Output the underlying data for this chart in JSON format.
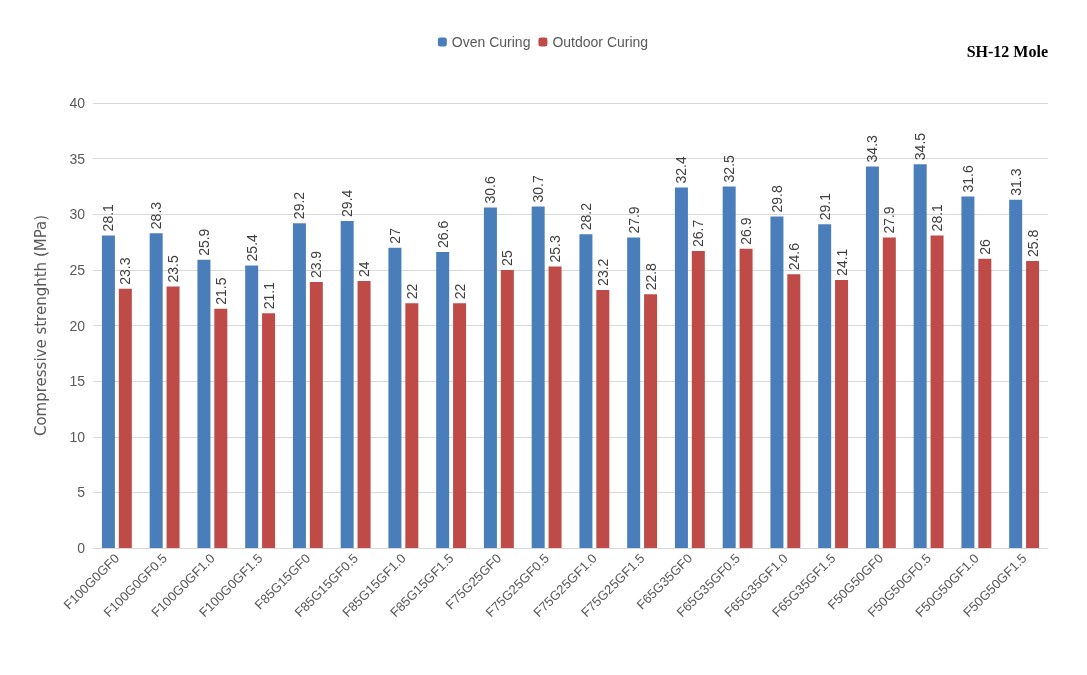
{
  "chart_data": {
    "type": "bar",
    "title": "SH-12 Mole",
    "ylabel": "Compressive strenghth (MPa)",
    "categories": [
      "F100G0GF0",
      "F100G0GF0.5",
      "F100G0GF1.0",
      "F100G0GF1.5",
      "F85G15GF0",
      "F85G15GF0.5",
      "F85G15GF1.0",
      "F85G15GF1.5",
      "F75G25GF0",
      "F75G25GF0.5",
      "F75G25GF1.0",
      "F75G25GF1.5",
      "F65G35GF0",
      "F65G35GF0.5",
      "F65G35GF1.0",
      "F65G35GF1.5",
      "F50G50GF0",
      "F50G50GF0.5",
      "F50G50GF1.0",
      "F50G50GF1.5"
    ],
    "series": [
      {
        "name": "Oven Curing",
        "color": "#4a7ebb",
        "values": [
          28.1,
          28.3,
          25.9,
          25.4,
          29.2,
          29.4,
          27,
          26.6,
          30.6,
          30.7,
          28.2,
          27.9,
          32.4,
          32.5,
          29.8,
          29.1,
          34.3,
          34.5,
          31.6,
          31.3
        ]
      },
      {
        "name": "Outdoor Curing",
        "color": "#be4b48",
        "values": [
          23.3,
          23.5,
          21.5,
          21.1,
          23.9,
          24,
          22,
          22,
          25,
          25.3,
          23.2,
          22.8,
          26.7,
          26.9,
          24.6,
          24.1,
          27.9,
          28.1,
          26,
          25.8
        ]
      }
    ],
    "ylim": [
      0,
      40
    ],
    "yticks": [
      0,
      5,
      10,
      15,
      20,
      25,
      30,
      35,
      40
    ],
    "grid": "y",
    "legend": "top",
    "data_labels": true
  }
}
